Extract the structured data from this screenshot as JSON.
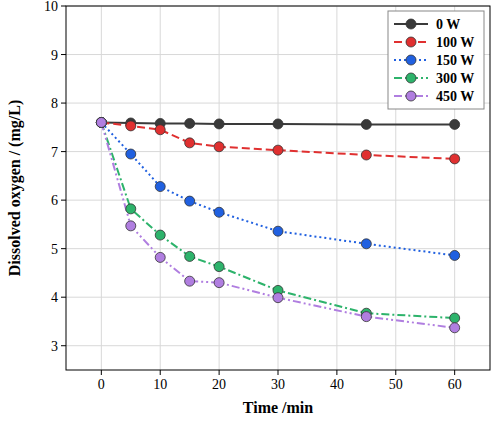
{
  "chart_data": {
    "type": "line",
    "x_label": "Time /min",
    "y_label": "Dissolved oxygen / (mg/L)",
    "x": [
      0,
      5,
      10,
      15,
      20,
      30,
      45,
      60
    ],
    "series": [
      {
        "name": "0 W",
        "color": "#3a3a3a",
        "line_style": "solid",
        "marker": "circle",
        "values": [
          7.6,
          7.59,
          7.58,
          7.58,
          7.57,
          7.57,
          7.56,
          7.56
        ]
      },
      {
        "name": "100 W",
        "color": "#e03030",
        "line_style": "dashed",
        "marker": "circle",
        "values": [
          7.6,
          7.53,
          7.45,
          7.18,
          7.1,
          7.03,
          6.93,
          6.85
        ]
      },
      {
        "name": "150 W",
        "color": "#2060e0",
        "line_style": "dotted",
        "marker": "circle",
        "values": [
          7.6,
          6.95,
          6.28,
          5.98,
          5.75,
          5.36,
          5.1,
          4.86
        ]
      },
      {
        "name": "300 W",
        "color": "#2db36b",
        "line_style": "dashdot",
        "marker": "circle",
        "values": [
          7.6,
          5.82,
          5.28,
          4.84,
          4.63,
          4.14,
          3.67,
          3.57
        ]
      },
      {
        "name": "450 W",
        "color": "#b07ee0",
        "line_style": "dashdotdot",
        "marker": "circle",
        "values": [
          7.6,
          5.47,
          4.82,
          4.33,
          4.3,
          3.99,
          3.6,
          3.37
        ]
      }
    ],
    "xlim": [
      -6,
      66
    ],
    "xticks": [
      0,
      10,
      20,
      30,
      40,
      50,
      60
    ],
    "ylim": [
      2.5,
      10
    ],
    "yticks": [
      3,
      4,
      5,
      6,
      7,
      8,
      9,
      10
    ],
    "grid": true,
    "legend": "top-right"
  }
}
